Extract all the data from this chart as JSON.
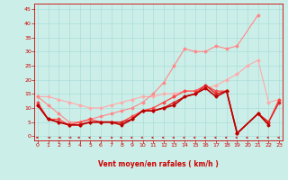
{
  "xlabel": "Vent moyen/en rafales ( km/h )",
  "xlim": [
    -0.3,
    23.3
  ],
  "ylim": [
    -1.5,
    47
  ],
  "yticks": [
    0,
    5,
    10,
    15,
    20,
    25,
    30,
    35,
    40,
    45
  ],
  "xticks": [
    0,
    1,
    2,
    3,
    4,
    5,
    6,
    7,
    8,
    9,
    10,
    11,
    12,
    13,
    14,
    15,
    16,
    17,
    18,
    19,
    20,
    21,
    22,
    23
  ],
  "bg_color": "#cceee8",
  "grid_color": "#aaddda",
  "series": [
    {
      "x": [
        0,
        1,
        2,
        3,
        4,
        5,
        6,
        7,
        8,
        9,
        10,
        11,
        12,
        13,
        14,
        15,
        16,
        17,
        18,
        19,
        20,
        21,
        22,
        23
      ],
      "y": [
        14,
        14,
        13,
        12,
        11,
        10,
        10,
        11,
        12,
        13,
        14,
        14,
        15,
        15,
        16,
        16,
        17,
        18,
        20,
        22,
        25,
        27,
        12,
        13
      ],
      "color": "#ffaaaa",
      "lw": 0.8,
      "marker": "D",
      "ms": 1.5
    },
    {
      "x": [
        0,
        1,
        2,
        3,
        4,
        5,
        6,
        7,
        8,
        9,
        10,
        11,
        12,
        13,
        14,
        15,
        16,
        17,
        18,
        19,
        21
      ],
      "y": [
        14,
        11,
        8,
        5,
        5,
        6,
        7,
        8,
        9,
        10,
        12,
        15,
        19,
        25,
        31,
        30,
        30,
        32,
        31,
        32,
        43
      ],
      "color": "#ff8888",
      "lw": 0.8,
      "marker": "D",
      "ms": 1.5
    },
    {
      "x": [
        0,
        1,
        2,
        3,
        4,
        5,
        6,
        7,
        8,
        9,
        10,
        11,
        12,
        13,
        14,
        15,
        16,
        17,
        18,
        19,
        21,
        22,
        23
      ],
      "y": [
        12,
        6,
        6,
        4,
        5,
        6,
        5,
        5,
        5,
        7,
        9,
        10,
        12,
        14,
        16,
        16,
        18,
        16,
        16,
        1,
        8,
        5,
        13
      ],
      "color": "#ff4444",
      "lw": 0.9,
      "marker": "D",
      "ms": 1.5
    },
    {
      "x": [
        0,
        1,
        2,
        3,
        4,
        5,
        6,
        7,
        8,
        9,
        10,
        11,
        12,
        13,
        14,
        15,
        16,
        17,
        18,
        19,
        21,
        22,
        23
      ],
      "y": [
        11,
        6,
        5,
        4,
        4,
        5,
        5,
        5,
        5,
        6,
        9,
        9,
        10,
        12,
        14,
        15,
        18,
        15,
        16,
        1,
        8,
        5,
        12
      ],
      "color": "#dd2222",
      "lw": 1.0,
      "marker": "D",
      "ms": 1.5
    },
    {
      "x": [
        0,
        1,
        2,
        3,
        4,
        5,
        6,
        7,
        8,
        9,
        10,
        11,
        12,
        13,
        14,
        15,
        16,
        17,
        18,
        19,
        21,
        22
      ],
      "y": [
        11,
        6,
        5,
        4,
        4,
        5,
        5,
        5,
        4,
        6,
        9,
        9,
        10,
        11,
        14,
        15,
        17,
        14,
        16,
        1,
        8,
        4
      ],
      "color": "#bb0000",
      "lw": 1.2,
      "marker": "D",
      "ms": 1.5
    }
  ],
  "arrow_angles_deg": [
    220,
    260,
    270,
    270,
    300,
    310,
    310,
    50,
    310,
    310,
    310,
    310,
    310,
    310,
    310,
    310,
    310,
    310,
    310,
    310,
    310,
    310,
    310,
    220
  ]
}
